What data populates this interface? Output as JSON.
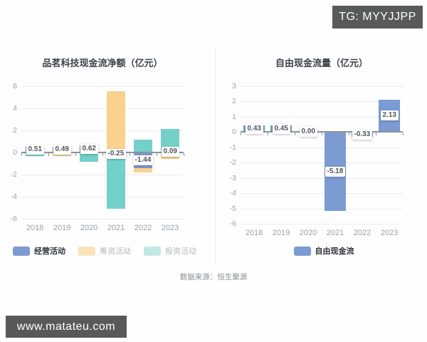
{
  "watermarks": {
    "top_right": "TG: MYYJJPP",
    "bottom_left": "www.matateu.com"
  },
  "footer": {
    "source": "数据来源：恒生聚源"
  },
  "chart_data": [
    {
      "type": "bar",
      "title": "品茗科技现金流净额（亿元）",
      "categories": [
        "2018",
        "2019",
        "2020",
        "2021",
        "2022",
        "2023"
      ],
      "ylim": [
        -6,
        6
      ],
      "yticks": [
        6,
        4,
        2,
        0,
        -2,
        -4,
        -6
      ],
      "grid": true,
      "legend_position": "bottom",
      "series": [
        {
          "name": "经营活动",
          "slug": "operating-activities",
          "color": "#7b9bd2",
          "values": [
            0.51,
            0.49,
            0.62,
            -0.25,
            -1.44,
            0.09
          ],
          "labels": [
            "0.51",
            "0.49",
            "0.62",
            "-0.25",
            "-1.44",
            "0.09"
          ]
        },
        {
          "name": "筹资活动",
          "slug": "financing-activities",
          "color": "#f9d28e",
          "values": [
            -0.08,
            -0.35,
            -0.15,
            5.55,
            -1.8,
            -0.6
          ]
        },
        {
          "name": "投资活动",
          "slug": "investing-activities",
          "color": "#73d1ca",
          "values": [
            -0.3,
            -0.04,
            -0.85,
            -5.1,
            1.15,
            2.1
          ]
        }
      ],
      "legend": [
        {
          "label": "经营活动",
          "swatch": "#7b9bd2",
          "text_color": "#2f3338"
        },
        {
          "label": "筹资活动",
          "swatch": "#fbe3b8",
          "text_color": "#b4b7ba"
        },
        {
          "label": "投资活动",
          "swatch": "#c2e8e4",
          "text_color": "#b4b7ba"
        }
      ]
    },
    {
      "type": "bar",
      "title": "自由现金流量（亿元）",
      "categories": [
        "2018",
        "2019",
        "2020",
        "2021",
        "2022",
        "2023"
      ],
      "ylim": [
        -6,
        3
      ],
      "yticks": [
        3,
        2,
        1,
        0,
        -1,
        -2,
        -3,
        -4,
        -5,
        -6
      ],
      "grid": true,
      "legend_position": "bottom",
      "series": [
        {
          "name": "自由现金流",
          "slug": "free-cash-flow",
          "color": "#7b9bd2",
          "values": [
            0.43,
            0.45,
            0.0,
            -5.18,
            -0.33,
            2.13
          ],
          "labels": [
            "0.43",
            "0.45",
            "0.00",
            "-5.18",
            "-0.33",
            "2.13"
          ]
        }
      ],
      "legend": [
        {
          "label": "自由现金流",
          "swatch": "#7b9bd2",
          "text_color": "#2f3338"
        }
      ]
    }
  ]
}
